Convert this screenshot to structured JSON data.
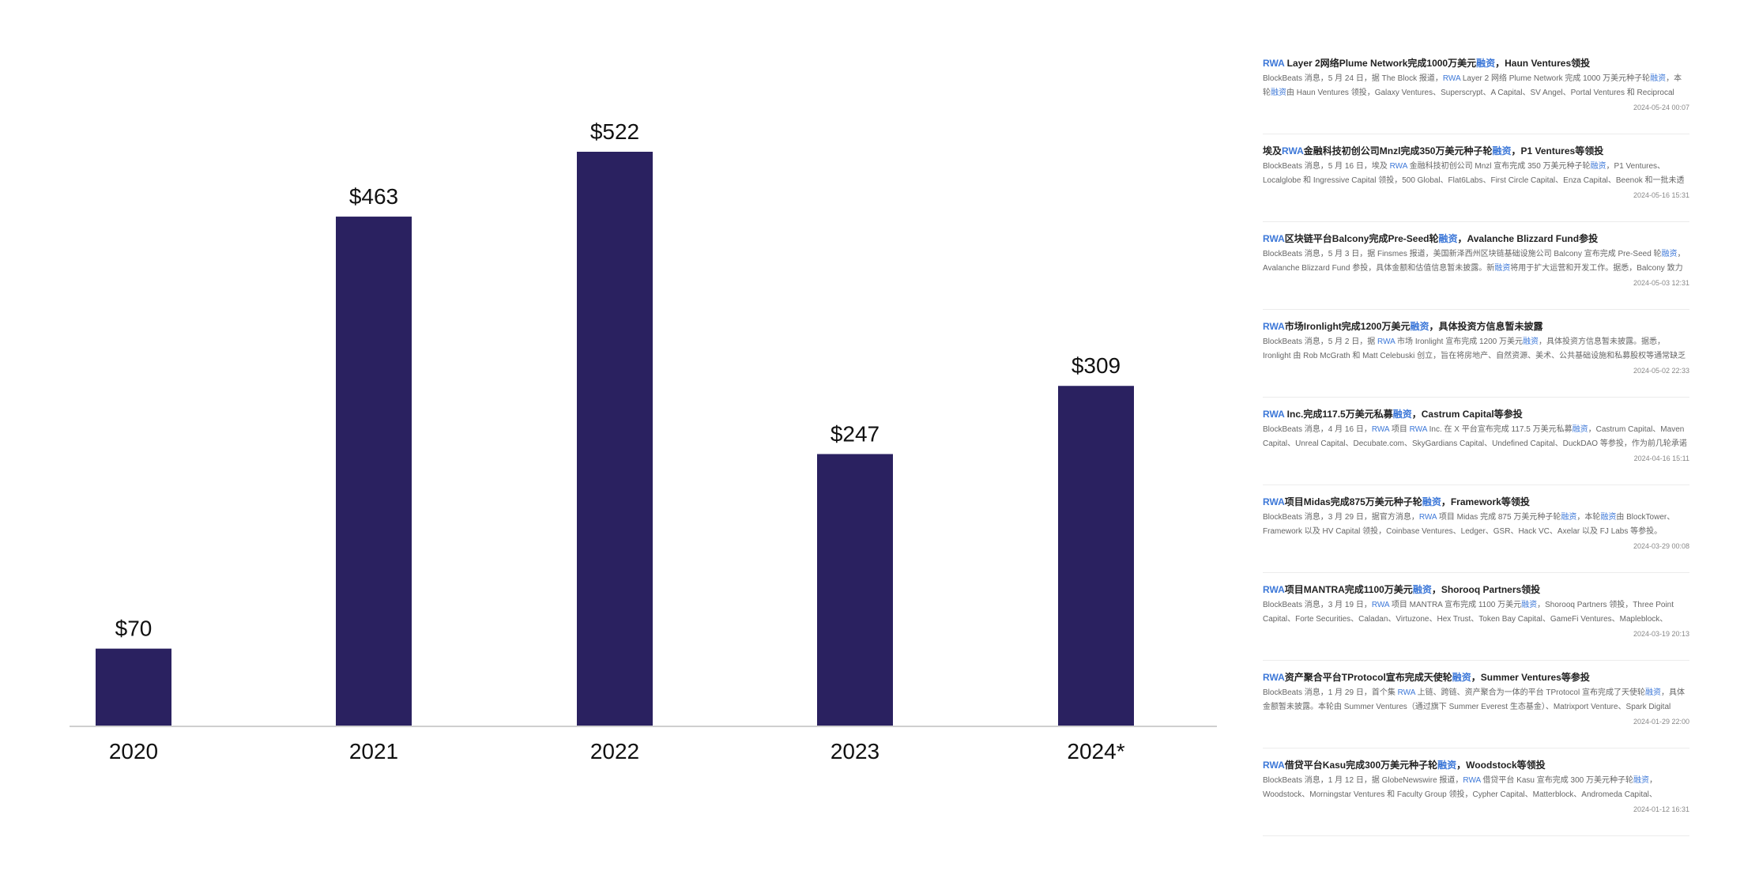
{
  "chart_data": {
    "type": "bar",
    "categories": [
      "2020",
      "2021",
      "2022",
      "2023",
      "2024*"
    ],
    "values": [
      70,
      463,
      522,
      247,
      309
    ],
    "data_labels": [
      "$70",
      "$463",
      "$522",
      "$247",
      "$309"
    ],
    "title": "",
    "xlabel": "",
    "ylabel": "",
    "ylim": [
      0,
      522
    ],
    "grid": false,
    "legend": "none",
    "bar_color": "#2a2160",
    "axis_color": "#cfcfcf"
  },
  "news": [
    {
      "title": [
        {
          "t": "RWA",
          "h": true
        },
        {
          "t": " Layer 2网络Plume Network完成1000万美元",
          "h": false
        },
        {
          "t": "融资",
          "h": true
        },
        {
          "t": "，Haun Ventures领投",
          "h": false
        }
      ],
      "body": [
        {
          "t": "BlockBeats 消息，5 月 24 日，据 The Block 报道，",
          "h": false
        },
        {
          "t": "RWA",
          "h": true
        },
        {
          "t": " Layer 2 网络 Plume Network 完成 1000 万美元种子轮",
          "h": false
        },
        {
          "t": "融资",
          "h": true
        },
        {
          "t": "，本轮",
          "h": false
        },
        {
          "t": "融资",
          "h": true
        },
        {
          "t": "由 Haun Ventures 领投，Galaxy Ventures、Superscrypt、A Capital、SV Angel、Portal Ventures 和 Reciprocal Venture...",
          "h": false
        }
      ],
      "date": "2024-05-24 00:07"
    },
    {
      "title": [
        {
          "t": "埃及",
          "h": false
        },
        {
          "t": "RWA",
          "h": true
        },
        {
          "t": "金融科技初创公司Mnzl完成350万美元种子轮",
          "h": false
        },
        {
          "t": "融资",
          "h": true
        },
        {
          "t": "，P1 Ventures等领投",
          "h": false
        }
      ],
      "body": [
        {
          "t": "BlockBeats 消息，5 月 16 日，埃及 ",
          "h": false
        },
        {
          "t": "RWA",
          "h": true
        },
        {
          "t": " 金融科技初创公司 Mnzl 宣布完成 350 万美元种子轮",
          "h": false
        },
        {
          "t": "融资",
          "h": true
        },
        {
          "t": "，P1 Ventures、Localglobe 和 Ingressive Capital 领投，500 Global、Flat6Labs、First Circle Capital、Enza Capital、Beenok 和一批未透露姓名的天使...",
          "h": false
        }
      ],
      "date": "2024-05-16 15:31"
    },
    {
      "title": [
        {
          "t": "RWA",
          "h": true
        },
        {
          "t": "区块链平台Balcony完成Pre-Seed轮",
          "h": false
        },
        {
          "t": "融资",
          "h": true
        },
        {
          "t": "，Avalanche Blizzard Fund参投",
          "h": false
        }
      ],
      "body": [
        {
          "t": "BlockBeats 消息，5 月 3 日，据 Finsmes 报道，美国新泽西州区块链基础设施公司 Balcony 宣布完成 Pre-Seed 轮",
          "h": false
        },
        {
          "t": "融资",
          "h": true
        },
        {
          "t": "，Avalanche Blizzard Fund 参投，具体金额和估值信息暂未披露。新",
          "h": false
        },
        {
          "t": "融资",
          "h": true
        },
        {
          "t": "将用于扩大运营和开发工作。据悉，Balcony 致力于构...",
          "h": false
        }
      ],
      "date": "2024-05-03 12:31"
    },
    {
      "title": [
        {
          "t": "RWA",
          "h": true
        },
        {
          "t": "市场Ironlight完成1200万美元",
          "h": false
        },
        {
          "t": "融资",
          "h": true
        },
        {
          "t": "，具体投资方信息暂未披露",
          "h": false
        }
      ],
      "body": [
        {
          "t": "BlockBeats 消息，5 月 2 日，据 ",
          "h": false
        },
        {
          "t": "RWA",
          "h": true
        },
        {
          "t": " 市场 Ironlight 宣布完成 1200 万美元",
          "h": false
        },
        {
          "t": "融资",
          "h": true
        },
        {
          "t": "，具体投资方信息暂未披露。据悉，Ironlight 由 Rob McGrath 和 Matt Celebuski 创立，旨在将房地产、自然资源、美术、公共基础设施和私募股权等通常缺乏流动性的私人证...",
          "h": false
        }
      ],
      "date": "2024-05-02 22:33"
    },
    {
      "title": [
        {
          "t": "RWA",
          "h": true
        },
        {
          "t": " Inc.完成117.5万美元私募",
          "h": false
        },
        {
          "t": "融资",
          "h": true
        },
        {
          "t": "，Castrum Capital等参投",
          "h": false
        }
      ],
      "body": [
        {
          "t": "BlockBeats 消息，4 月 16 日，",
          "h": false
        },
        {
          "t": "RWA",
          "h": true
        },
        {
          "t": " 项目 ",
          "h": false
        },
        {
          "t": "RWA",
          "h": true
        },
        {
          "t": " Inc. 在 X 平台宣布完成 117.5 万美元私募",
          "h": false
        },
        {
          "t": "融资",
          "h": true
        },
        {
          "t": "，Castrum Capital、Maven Capital、Unreal Capital、Decubate.com、SkyGardians Capital、Undefined Capital、DuckDAO 等参投，作为前几轮承诺的...",
          "h": false
        }
      ],
      "date": "2024-04-16 15:11"
    },
    {
      "title": [
        {
          "t": "RWA",
          "h": true
        },
        {
          "t": "项目Midas完成875万美元种子轮",
          "h": false
        },
        {
          "t": "融资",
          "h": true
        },
        {
          "t": "，Framework等领投",
          "h": false
        }
      ],
      "body": [
        {
          "t": "BlockBeats 消息，3 月 29 日，据官方消息，",
          "h": false
        },
        {
          "t": "RWA",
          "h": true
        },
        {
          "t": " 项目 Midas 完成 875 万美元种子轮",
          "h": false
        },
        {
          "t": "融资",
          "h": true
        },
        {
          "t": "，本轮",
          "h": false
        },
        {
          "t": "融资",
          "h": true
        },
        {
          "t": "由 BlockTower、Framework 以及 HV Capital 领投，Coinbase Ventures、Ledger、GSR、Hack VC、Axelar 以及 FJ Labs 等参投。",
          "h": false
        }
      ],
      "date": "2024-03-29 00:08"
    },
    {
      "title": [
        {
          "t": "RWA",
          "h": true
        },
        {
          "t": "项目MANTRA完成1100万美元",
          "h": false
        },
        {
          "t": "融资",
          "h": true
        },
        {
          "t": "，Shorooq Partners领投",
          "h": false
        }
      ],
      "body": [
        {
          "t": "BlockBeats 消息，3 月 19 日，",
          "h": false
        },
        {
          "t": "RWA",
          "h": true
        },
        {
          "t": " 项目 MANTRA 宣布完成 1100 万美元",
          "h": false
        },
        {
          "t": "融资",
          "h": true
        },
        {
          "t": "，Shorooq Partners 领投，Three Point Capital、Forte Securities、Caladan、Virtuzone、Hex Trust、Token Bay Capital、GameFi Ventures、Mapleblock、Fuse...",
          "h": false
        }
      ],
      "date": "2024-03-19 20:13"
    },
    {
      "title": [
        {
          "t": "RWA",
          "h": true
        },
        {
          "t": "资产聚合平台TProtocol宣布完成天使轮",
          "h": false
        },
        {
          "t": "融资",
          "h": true
        },
        {
          "t": "，Summer Ventures等参投",
          "h": false
        }
      ],
      "body": [
        {
          "t": "BlockBeats 消息，1 月 29 日，首个集 ",
          "h": false
        },
        {
          "t": "RWA",
          "h": true
        },
        {
          "t": " 上链、跨链、资产聚合为一体的平台 TProtocol 宣布完成了天使轮",
          "h": false
        },
        {
          "t": "融资",
          "h": true
        },
        {
          "t": "，具体金额暂未披露。本轮由 Summer Ventures（通过旗下 Summer Everest 生态基金）、Matrixport Venture、Spark Digital Capital ...",
          "h": false
        }
      ],
      "date": "2024-01-29 22:00"
    },
    {
      "title": [
        {
          "t": "RWA",
          "h": true
        },
        {
          "t": "借贷平台Kasu完成300万美元种子轮",
          "h": false
        },
        {
          "t": "融资",
          "h": true
        },
        {
          "t": "，Woodstock等领投",
          "h": false
        }
      ],
      "body": [
        {
          "t": "BlockBeats 消息，1 月 12 日，据 GlobeNewswire 报道，",
          "h": false
        },
        {
          "t": "RWA",
          "h": true
        },
        {
          "t": " 借贷平台 Kasu 宣布完成 300 万美元种子轮",
          "h": false
        },
        {
          "t": "融资",
          "h": true
        },
        {
          "t": "，Woodstock、Morningstar Ventures 和 Faculty Group 领投，Cypher Capital、Matterblock、Andromeda Capital、NxGen、Rarestone...",
          "h": false
        }
      ],
      "date": "2024-01-12 16:31"
    }
  ]
}
